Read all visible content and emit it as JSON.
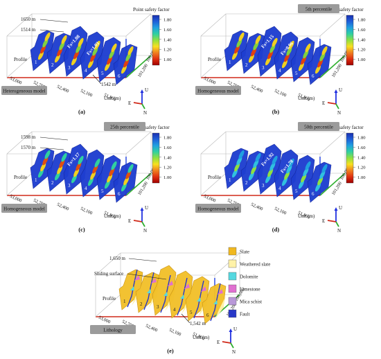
{
  "colorbar": {
    "title": "Point safety factor",
    "ticks": [
      "1.80",
      "1.60",
      "1.40",
      "1.20",
      "1.00"
    ],
    "colors": [
      "#a00000",
      "#e03010",
      "#f08020",
      "#f8e020",
      "#90e040",
      "#30d0a0",
      "#20a0e0",
      "#1f5fd8",
      "#1a2fb0"
    ]
  },
  "axes": {
    "x_ticks": [
      "53,000",
      "52,700",
      "52,400",
      "52,100",
      "51,800"
    ],
    "y_ticks": [
      "101,200",
      "100,000"
    ],
    "unit_label": "Unit (m)",
    "profile_label": "Profile",
    "profile_numbers": [
      "1",
      "2",
      "3",
      "4",
      "5",
      "6"
    ],
    "triad": {
      "u": "U",
      "e": "E",
      "n": "N"
    }
  },
  "panels": {
    "a": {
      "tag": "(a)",
      "model_label": "Heterogeneous model",
      "elev_top": "1650 m",
      "elev_mid": "1514 m",
      "elev_bottom": "1542 m",
      "fs1": "Fs=1.08",
      "fs2": "Fs=1.03"
    },
    "b": {
      "tag": "(b)",
      "model_label": "Homogeneous model",
      "percentile": "5th percentile",
      "fs1": "Fs=1.15",
      "fs2": "Fs=0.96"
    },
    "c": {
      "tag": "(c)",
      "model_label": "Homogeneous model",
      "percentile": "25th percentile",
      "elev_top": "1598 m",
      "elev_mid": "1570 m",
      "fs1": "Fs=1.17"
    },
    "d": {
      "tag": "(d)",
      "model_label": "Homogeneous model",
      "percentile": "50th percentile",
      "fs1": "Fs=1.92",
      "fs2": "Fs=1.78"
    },
    "e": {
      "tag": "(e)",
      "model_label": "Lithology",
      "elev_top": "1,650 m",
      "elev_bottom": "1,542 m",
      "sliding": "Sliding surface",
      "legend": [
        {
          "label": "Slate",
          "color": "#f0b820"
        },
        {
          "label": "Weathered slate",
          "color": "#fff2a8"
        },
        {
          "label": "Dolomite",
          "color": "#55d8e0"
        },
        {
          "label": "Limestone",
          "color": "#e070d0"
        },
        {
          "label": "Mica schist",
          "color": "#b898d8"
        },
        {
          "label": "Fault",
          "color": "#2838c8"
        }
      ]
    }
  }
}
